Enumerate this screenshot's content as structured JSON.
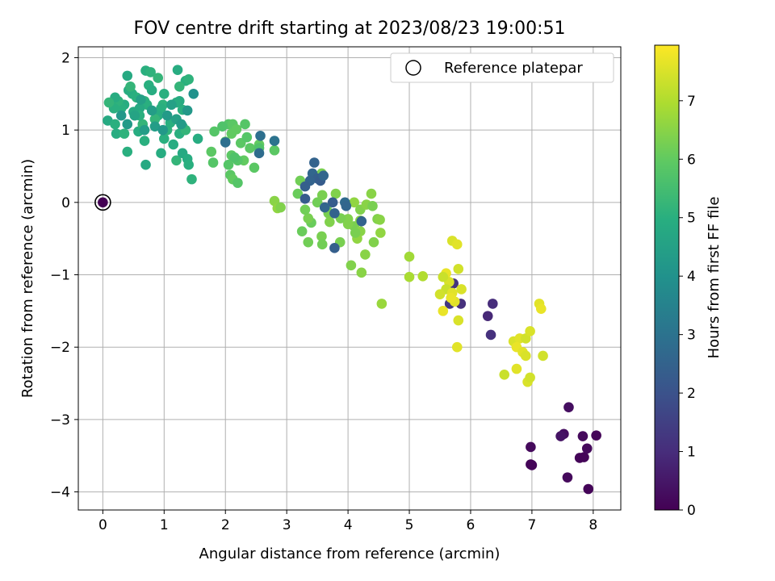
{
  "chart_data": {
    "type": "scatter",
    "title": "FOV centre drift starting at 2023/08/23 19:00:51",
    "xlabel": "Angular distance from reference (arcmin)",
    "ylabel": "Rotation from reference (arcmin)",
    "xlim": [
      -0.4,
      8.45
    ],
    "ylim": [
      -4.25,
      2.15
    ],
    "xticks": [
      "0",
      "1",
      "2",
      "3",
      "4",
      "5",
      "6",
      "7",
      "8"
    ],
    "yticks": [
      "−4",
      "−3",
      "−2",
      "−1",
      "0",
      "1",
      "2"
    ],
    "grid": true,
    "legend": {
      "location": "top-right",
      "entries": [
        "Reference platepar"
      ]
    },
    "colorbar": {
      "label": "Hours from first FF file",
      "range": [
        0,
        7.95
      ],
      "ticks": [
        "0",
        "1",
        "2",
        "3",
        "4",
        "5",
        "6",
        "7"
      ],
      "colormap": "viridis"
    },
    "reference_point": {
      "x": 0,
      "y": 0
    },
    "points": [
      [
        0,
        0,
        0.0
      ],
      [
        6.36,
        -1.4,
        1.0
      ],
      [
        5.84,
        -1.4,
        1.1
      ],
      [
        5.72,
        -1.12,
        1.2
      ],
      [
        6.28,
        -1.57,
        0.9
      ],
      [
        6.33,
        -1.83,
        1.1
      ],
      [
        5.66,
        -1.4,
        1.3
      ],
      [
        6.98,
        -3.38,
        0.2
      ],
      [
        6.98,
        -3.62,
        0.1
      ],
      [
        7.0,
        -3.63,
        0.1
      ],
      [
        7.52,
        -3.2,
        0.3
      ],
      [
        7.47,
        -3.23,
        0.4
      ],
      [
        7.6,
        -2.83,
        0.3
      ],
      [
        7.58,
        -3.8,
        0.2
      ],
      [
        7.78,
        -3.53,
        0.1
      ],
      [
        7.85,
        -3.52,
        0.1
      ],
      [
        7.83,
        -3.23,
        0.2
      ],
      [
        7.9,
        -3.4,
        0.2
      ],
      [
        8.05,
        -3.22,
        0.1
      ],
      [
        7.92,
        -3.96,
        0.1
      ],
      [
        5.7,
        -0.53,
        7.5
      ],
      [
        5.78,
        -0.58,
        7.6
      ],
      [
        5.6,
        -0.98,
        7.7
      ],
      [
        5.65,
        -1.1,
        7.5
      ],
      [
        5.6,
        -1.2,
        7.3
      ],
      [
        5.7,
        -1.25,
        7.6
      ],
      [
        5.8,
        -0.92,
        7.4
      ],
      [
        5.85,
        -1.2,
        7.5
      ],
      [
        5.74,
        -1.37,
        7.6
      ],
      [
        5.55,
        -1.5,
        7.7
      ],
      [
        5.8,
        -1.63,
        7.5
      ],
      [
        5.78,
        -2.0,
        7.6
      ],
      [
        5.55,
        -1.03,
        7.3
      ],
      [
        5.68,
        -1.32,
        7.7
      ],
      [
        5.5,
        -1.27,
        7.4
      ],
      [
        6.7,
        -1.92,
        7.5
      ],
      [
        6.8,
        -1.88,
        7.6
      ],
      [
        6.75,
        -2.0,
        7.7
      ],
      [
        6.9,
        -1.88,
        7.4
      ],
      [
        6.97,
        -1.78,
        7.5
      ],
      [
        7.12,
        -1.4,
        7.6
      ],
      [
        7.15,
        -1.47,
        7.7
      ],
      [
        6.55,
        -2.38,
        7.3
      ],
      [
        6.75,
        -2.3,
        7.6
      ],
      [
        6.93,
        -2.48,
        7.5
      ],
      [
        6.97,
        -2.42,
        7.4
      ],
      [
        6.85,
        -2.07,
        7.6
      ],
      [
        6.9,
        -2.12,
        7.5
      ],
      [
        7.18,
        -2.12,
        7.4
      ],
      [
        5.0,
        -0.75,
        6.8
      ],
      [
        5.0,
        -1.03,
        6.9
      ],
      [
        5.22,
        -1.02,
        7.0
      ],
      [
        4.55,
        -1.4,
        6.7
      ],
      [
        4.38,
        0.12,
        6.5
      ],
      [
        4.1,
        0.0,
        6.6
      ],
      [
        4.2,
        -0.1,
        6.4
      ],
      [
        4.3,
        -0.03,
        6.5
      ],
      [
        4.4,
        -0.05,
        6.3
      ],
      [
        4.48,
        -0.23,
        6.4
      ],
      [
        4.52,
        -0.24,
        6.5
      ],
      [
        4.53,
        -0.42,
        6.6
      ],
      [
        4.42,
        -0.55,
        6.4
      ],
      [
        4.28,
        -0.72,
        6.5
      ],
      [
        4.0,
        -0.23,
        6.4
      ],
      [
        4.1,
        -0.33,
        6.3
      ],
      [
        4.2,
        -0.4,
        6.5
      ],
      [
        4.15,
        -0.5,
        6.6
      ],
      [
        4.05,
        -0.87,
        6.4
      ],
      [
        4.22,
        -0.97,
        6.5
      ],
      [
        3.88,
        -0.22,
        6.3
      ],
      [
        3.8,
        0.12,
        6.4
      ],
      [
        3.65,
        -0.08,
        6.2
      ],
      [
        3.68,
        -0.15,
        6.3
      ],
      [
        3.7,
        -0.27,
        6.4
      ],
      [
        3.58,
        0.1,
        6.3
      ],
      [
        3.5,
        0.0,
        6.2
      ],
      [
        3.4,
        -0.28,
        6.1
      ],
      [
        3.35,
        -0.22,
        6.3
      ],
      [
        3.3,
        -0.1,
        6.2
      ],
      [
        3.25,
        -0.4,
        6.1
      ],
      [
        3.35,
        -0.55,
        6.2
      ],
      [
        3.57,
        -0.47,
        6.3
      ],
      [
        3.58,
        -0.58,
        6.2
      ],
      [
        3.87,
        -0.55,
        6.3
      ],
      [
        3.18,
        0.12,
        6.1
      ],
      [
        3.22,
        0.3,
        6.2
      ],
      [
        3.57,
        0.4,
        6.3
      ],
      [
        4.0,
        -0.3,
        6.4
      ],
      [
        4.2,
        -0.25,
        6.5
      ],
      [
        4.12,
        -0.42,
        6.3
      ],
      [
        2.8,
        0.02,
        6.5
      ],
      [
        2.85,
        -0.08,
        6.6
      ],
      [
        2.9,
        -0.07,
        6.4
      ],
      [
        4.22,
        -0.26,
        2.5
      ],
      [
        3.75,
        0.0,
        2.3
      ],
      [
        3.78,
        -0.63,
        2.4
      ],
      [
        3.62,
        -0.07,
        2.6
      ],
      [
        3.3,
        0.05,
        2.3
      ],
      [
        3.45,
        0.55,
        2.5
      ],
      [
        3.42,
        0.4,
        2.6
      ],
      [
        3.5,
        0.33,
        2.4
      ],
      [
        3.55,
        0.3,
        2.3
      ],
      [
        3.38,
        0.3,
        2.5
      ],
      [
        3.6,
        0.37,
        2.6
      ],
      [
        3.3,
        0.22,
        2.4
      ],
      [
        3.95,
        0.0,
        2.7
      ],
      [
        3.78,
        -0.15,
        2.5
      ],
      [
        3.97,
        -0.05,
        2.6
      ],
      [
        2.05,
        1.08,
        5.8
      ],
      [
        2.12,
        1.08,
        5.9
      ],
      [
        2.18,
        1.01,
        6.0
      ],
      [
        1.95,
        1.05,
        5.7
      ],
      [
        1.82,
        0.98,
        5.8
      ],
      [
        2.1,
        0.95,
        6.0
      ],
      [
        2.25,
        0.82,
        5.9
      ],
      [
        2.35,
        0.9,
        5.8
      ],
      [
        2.4,
        0.75,
        5.9
      ],
      [
        2.3,
        0.58,
        6.0
      ],
      [
        2.2,
        0.58,
        5.8
      ],
      [
        2.1,
        0.65,
        5.9
      ],
      [
        2.15,
        0.62,
        5.7
      ],
      [
        2.05,
        0.52,
        5.8
      ],
      [
        2.08,
        0.38,
        5.9
      ],
      [
        2.12,
        0.32,
        6.0
      ],
      [
        2.2,
        0.27,
        5.8
      ],
      [
        2.47,
        0.48,
        5.9
      ],
      [
        2.55,
        0.8,
        6.0
      ],
      [
        2.55,
        0.75,
        5.7
      ],
      [
        2.32,
        1.08,
        5.8
      ],
      [
        1.77,
        0.7,
        5.9
      ],
      [
        1.8,
        0.55,
        5.8
      ],
      [
        2.8,
        0.72,
        5.9
      ],
      [
        2.0,
        0.84,
        6.0
      ],
      [
        2.57,
        0.92,
        2.9
      ],
      [
        2.55,
        0.68,
        2.8
      ],
      [
        2.8,
        0.85,
        3.0
      ],
      [
        2.0,
        0.83,
        2.9
      ],
      [
        0.7,
        1.82,
        5.0
      ],
      [
        0.78,
        1.8,
        5.1
      ],
      [
        0.9,
        1.72,
        5.2
      ],
      [
        0.75,
        1.62,
        5.0
      ],
      [
        0.8,
        1.55,
        4.9
      ],
      [
        0.68,
        1.4,
        5.1
      ],
      [
        0.72,
        1.35,
        5.0
      ],
      [
        0.6,
        1.3,
        4.8
      ],
      [
        0.55,
        1.45,
        5.1
      ],
      [
        0.48,
        1.5,
        5.0
      ],
      [
        0.42,
        1.55,
        4.9
      ],
      [
        0.45,
        1.6,
        5.2
      ],
      [
        0.4,
        1.75,
        4.8
      ],
      [
        0.35,
        1.35,
        4.9
      ],
      [
        0.3,
        1.3,
        5.0
      ],
      [
        0.25,
        1.4,
        5.1
      ],
      [
        0.2,
        1.45,
        4.9
      ],
      [
        0.18,
        1.3,
        5.0
      ],
      [
        0.1,
        1.38,
        5.2
      ],
      [
        0.08,
        1.13,
        4.8
      ],
      [
        0.2,
        1.08,
        5.0
      ],
      [
        0.22,
        0.95,
        4.9
      ],
      [
        0.35,
        0.95,
        5.1
      ],
      [
        0.4,
        0.7,
        5.0
      ],
      [
        0.58,
        0.98,
        4.9
      ],
      [
        0.65,
        1.08,
        5.2
      ],
      [
        0.68,
        0.85,
        5.0
      ],
      [
        0.7,
        0.52,
        4.8
      ],
      [
        0.95,
        0.68,
        4.9
      ],
      [
        1.0,
        0.88,
        5.0
      ],
      [
        1.05,
        1.0,
        5.1
      ],
      [
        1.1,
        1.1,
        5.0
      ],
      [
        1.15,
        0.8,
        4.9
      ],
      [
        1.2,
        0.58,
        5.2
      ],
      [
        1.3,
        0.68,
        4.8
      ],
      [
        1.38,
        0.6,
        4.9
      ],
      [
        1.4,
        0.52,
        5.0
      ],
      [
        1.45,
        0.32,
        5.1
      ],
      [
        1.25,
        0.95,
        5.0
      ],
      [
        1.3,
        1.05,
        4.9
      ],
      [
        1.35,
        1.0,
        5.2
      ],
      [
        1.3,
        1.28,
        5.0
      ],
      [
        1.25,
        1.4,
        4.8
      ],
      [
        1.2,
        1.38,
        4.9
      ],
      [
        1.0,
        1.5,
        5.0
      ],
      [
        0.98,
        1.35,
        5.1
      ],
      [
        0.95,
        1.3,
        5.0
      ],
      [
        0.9,
        1.2,
        4.9
      ],
      [
        0.85,
        1.15,
        5.2
      ],
      [
        0.6,
        1.2,
        5.0
      ],
      [
        0.5,
        1.25,
        4.8
      ],
      [
        1.22,
        1.83,
        4.9
      ],
      [
        1.35,
        1.68,
        5.0
      ],
      [
        1.4,
        1.7,
        5.1
      ],
      [
        1.25,
        1.6,
        5.2
      ],
      [
        1.55,
        0.88,
        4.9
      ],
      [
        1.48,
        1.5,
        4.0
      ],
      [
        1.38,
        1.27,
        4.2
      ],
      [
        1.12,
        1.35,
        4.5
      ],
      [
        1.05,
        1.2,
        4.3
      ],
      [
        0.8,
        1.27,
        4.4
      ],
      [
        0.62,
        1.42,
        4.5
      ],
      [
        0.52,
        1.2,
        4.6
      ],
      [
        0.3,
        1.2,
        4.2
      ],
      [
        0.4,
        1.08,
        4.3
      ],
      [
        0.85,
        1.05,
        4.4
      ],
      [
        1.2,
        1.15,
        4.5
      ],
      [
        1.28,
        1.08,
        4.3
      ],
      [
        0.68,
        1.0,
        4.4
      ],
      [
        0.98,
        1.0,
        4.2
      ]
    ]
  }
}
